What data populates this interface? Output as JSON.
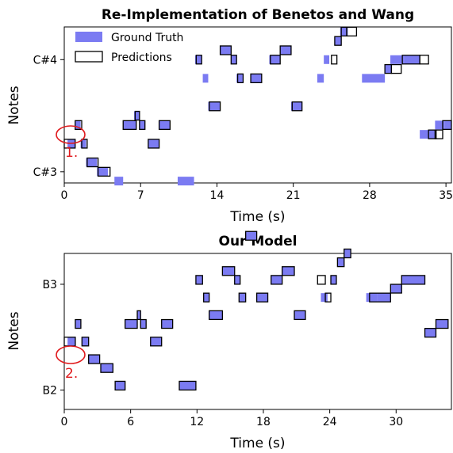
{
  "colors": {
    "ground_truth_fill": "#7b7bf2",
    "prediction_edge": "#000000",
    "annotation": "#e0191c"
  },
  "chart_data": [
    {
      "type": "piano-roll",
      "title": "Re-Implementation of Benetos and Wang",
      "xlabel": "Time (s)",
      "ylabel": "Notes",
      "xlim": [
        0,
        35.5
      ],
      "ylim": [
        -1.2,
        15.5
      ],
      "xticks": [
        0,
        7,
        14,
        21,
        28,
        35
      ],
      "yticks": [
        {
          "value": 0,
          "label": "C#3"
        },
        {
          "value": 12,
          "label": "C#4"
        }
      ],
      "legend": {
        "position": "top-left",
        "entries": [
          "Ground Truth",
          "Predictions"
        ]
      },
      "annotation": {
        "label": "1.",
        "x": 0.6,
        "y": 3
      },
      "ground_truth": [
        [
          0.3,
          1.0,
          3
        ],
        [
          1.0,
          1.5,
          5
        ],
        [
          1.5,
          2.0,
          3
        ],
        [
          2.0,
          3.0,
          1
        ],
        [
          3.0,
          4.0,
          0
        ],
        [
          4.6,
          5.4,
          -1
        ],
        [
          5.4,
          6.6,
          5
        ],
        [
          6.4,
          6.9,
          6
        ],
        [
          6.9,
          7.4,
          5
        ],
        [
          7.7,
          8.7,
          3
        ],
        [
          8.7,
          9.7,
          5
        ],
        [
          10.4,
          11.9,
          -1
        ],
        [
          12.0,
          12.6,
          12
        ],
        [
          12.7,
          13.2,
          10
        ],
        [
          13.2,
          14.3,
          7
        ],
        [
          14.3,
          15.3,
          13
        ],
        [
          15.3,
          15.8,
          12
        ],
        [
          15.8,
          16.4,
          10
        ],
        [
          17.1,
          18.1,
          10
        ],
        [
          18.8,
          19.8,
          12
        ],
        [
          19.8,
          20.8,
          13
        ],
        [
          20.8,
          21.8,
          7
        ],
        [
          23.2,
          23.8,
          10
        ],
        [
          23.8,
          24.3,
          12
        ],
        [
          24.8,
          25.4,
          14
        ],
        [
          25.3,
          26.0,
          15
        ],
        [
          27.3,
          29.4,
          10
        ],
        [
          29.4,
          30.0,
          11
        ],
        [
          29.9,
          31.2,
          12
        ],
        [
          31.2,
          32.6,
          12
        ],
        [
          32.6,
          33.4,
          4
        ],
        [
          33.4,
          34.1,
          4
        ],
        [
          34.0,
          34.9,
          5
        ],
        [
          34.9,
          35.5,
          5
        ]
      ],
      "predictions": [
        [
          0.0,
          1.0,
          3
        ],
        [
          1.0,
          1.6,
          5
        ],
        [
          1.6,
          2.1,
          3
        ],
        [
          2.1,
          3.1,
          1
        ],
        [
          3.1,
          4.2,
          0
        ],
        [
          5.4,
          6.6,
          5
        ],
        [
          6.5,
          6.9,
          6
        ],
        [
          6.9,
          7.4,
          5
        ],
        [
          7.7,
          8.7,
          3
        ],
        [
          8.7,
          9.7,
          5
        ],
        [
          12.1,
          12.6,
          12
        ],
        [
          13.3,
          14.3,
          7
        ],
        [
          14.3,
          15.3,
          13
        ],
        [
          15.3,
          15.8,
          12
        ],
        [
          15.9,
          16.4,
          10
        ],
        [
          17.1,
          18.1,
          10
        ],
        [
          18.9,
          19.8,
          12
        ],
        [
          19.8,
          20.8,
          13
        ],
        [
          20.9,
          21.8,
          7
        ],
        [
          24.5,
          25.0,
          12
        ],
        [
          24.8,
          25.4,
          14
        ],
        [
          25.4,
          25.9,
          15
        ],
        [
          25.9,
          26.8,
          15
        ],
        [
          29.4,
          30.0,
          11
        ],
        [
          30.0,
          30.9,
          11
        ],
        [
          31.0,
          32.6,
          12
        ],
        [
          32.6,
          33.4,
          12
        ],
        [
          33.4,
          34.1,
          4
        ],
        [
          34.0,
          34.7,
          4
        ],
        [
          34.7,
          35.5,
          5
        ]
      ]
    },
    {
      "type": "piano-roll",
      "title": "Our Model",
      "xlabel": "Time (s)",
      "ylabel": "Notes",
      "xlim": [
        0,
        35
      ],
      "ylim": [
        -2.2,
        15.5
      ],
      "xticks": [
        0,
        6,
        12,
        18,
        24,
        30
      ],
      "yticks": [
        {
          "value": 0,
          "label": "B2"
        },
        {
          "value": 12,
          "label": "B3"
        }
      ],
      "annotation": {
        "label": "2.",
        "x": 0.6,
        "y": 5.5
      },
      "ground_truth": [
        [
          0.3,
          1.0,
          5.5
        ],
        [
          1.0,
          1.5,
          7.5
        ],
        [
          1.6,
          2.2,
          5.5
        ],
        [
          2.2,
          3.2,
          3.5
        ],
        [
          3.3,
          4.4,
          2.5
        ],
        [
          4.6,
          5.5,
          0.5
        ],
        [
          5.5,
          6.6,
          7.5
        ],
        [
          6.6,
          6.9,
          8.5
        ],
        [
          6.9,
          7.4,
          7.5
        ],
        [
          7.8,
          8.8,
          5.5
        ],
        [
          8.8,
          9.8,
          7.5
        ],
        [
          10.4,
          11.9,
          0.5
        ],
        [
          11.9,
          12.5,
          12.5
        ],
        [
          12.6,
          13.1,
          10.5
        ],
        [
          13.1,
          14.3,
          8.5
        ],
        [
          14.3,
          15.4,
          13.5
        ],
        [
          15.4,
          15.9,
          12.5
        ],
        [
          15.8,
          16.4,
          10.5
        ],
        [
          16.4,
          17.4,
          17.5
        ],
        [
          17.4,
          18.4,
          10.5
        ],
        [
          18.7,
          19.7,
          12.5
        ],
        [
          19.7,
          20.8,
          13.5
        ],
        [
          20.8,
          21.8,
          8.5
        ],
        [
          23.2,
          23.8,
          10.5
        ],
        [
          24.1,
          24.6,
          12.5
        ],
        [
          24.7,
          25.3,
          14.5
        ],
        [
          25.3,
          25.9,
          15.5
        ],
        [
          27.3,
          28.3,
          10.5
        ],
        [
          28.3,
          29.5,
          10.5
        ],
        [
          29.5,
          30.5,
          11.5
        ],
        [
          30.5,
          32.6,
          12.5
        ],
        [
          32.6,
          33.6,
          6.5
        ],
        [
          33.6,
          34.7,
          7.5
        ]
      ],
      "predictions": [
        [
          0.0,
          1.0,
          5.5
        ],
        [
          1.0,
          1.5,
          7.5
        ],
        [
          1.6,
          2.2,
          5.5
        ],
        [
          2.2,
          3.2,
          3.5
        ],
        [
          3.3,
          4.4,
          2.5
        ],
        [
          4.6,
          5.5,
          0.5
        ],
        [
          5.5,
          6.6,
          7.5
        ],
        [
          6.6,
          6.9,
          8.5
        ],
        [
          6.9,
          7.4,
          7.5
        ],
        [
          7.8,
          8.8,
          5.5
        ],
        [
          8.8,
          9.8,
          7.5
        ],
        [
          10.4,
          11.9,
          0.5
        ],
        [
          11.9,
          12.5,
          12.5
        ],
        [
          12.6,
          13.1,
          10.5
        ],
        [
          13.1,
          14.3,
          8.5
        ],
        [
          14.3,
          15.4,
          13.5
        ],
        [
          15.4,
          15.9,
          12.5
        ],
        [
          15.8,
          16.4,
          10.5
        ],
        [
          16.4,
          17.4,
          17.5
        ],
        [
          17.4,
          18.4,
          10.5
        ],
        [
          18.7,
          19.7,
          12.5
        ],
        [
          19.7,
          20.8,
          13.5
        ],
        [
          20.8,
          21.8,
          8.5
        ],
        [
          22.9,
          23.6,
          12.5
        ],
        [
          23.6,
          24.1,
          10.5
        ],
        [
          24.1,
          24.6,
          12.5
        ],
        [
          24.7,
          25.3,
          14.5
        ],
        [
          25.3,
          25.9,
          15.5
        ],
        [
          27.6,
          29.5,
          10.5
        ],
        [
          29.5,
          30.5,
          11.5
        ],
        [
          30.5,
          32.6,
          12.5
        ],
        [
          32.6,
          33.6,
          6.5
        ],
        [
          33.6,
          34.7,
          7.5
        ]
      ]
    }
  ]
}
